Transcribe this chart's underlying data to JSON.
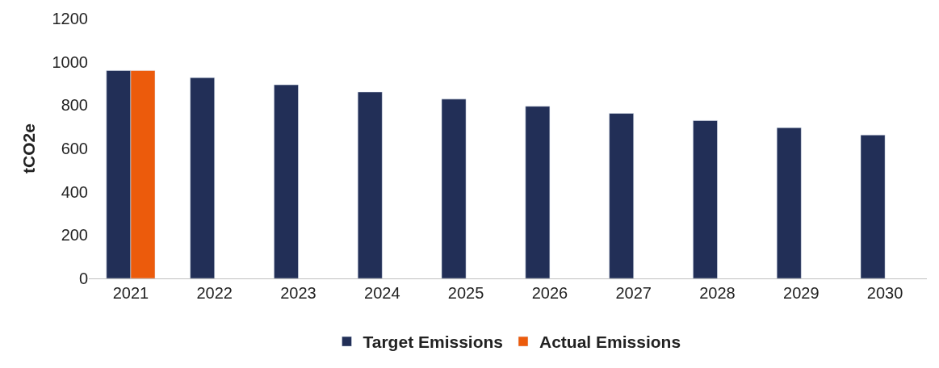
{
  "chart_data": {
    "type": "bar",
    "ylabel": "tCO2e",
    "categories": [
      "2021",
      "2022",
      "2023",
      "2024",
      "2025",
      "2026",
      "2027",
      "2028",
      "2029",
      "2030"
    ],
    "series": [
      {
        "name": "Target Emissions",
        "color": "#222f57",
        "values": [
          960,
          927,
          894,
          861,
          828,
          795,
          762,
          729,
          696,
          662
        ]
      },
      {
        "name": "Actual Emissions",
        "color": "#ec5b0c",
        "values": [
          960,
          null,
          null,
          null,
          null,
          null,
          null,
          null,
          null,
          null
        ]
      }
    ],
    "ylim": [
      0,
      1200
    ],
    "yticks": [
      0,
      200,
      400,
      600,
      800,
      1000,
      1200
    ],
    "legend": "bottom"
  }
}
